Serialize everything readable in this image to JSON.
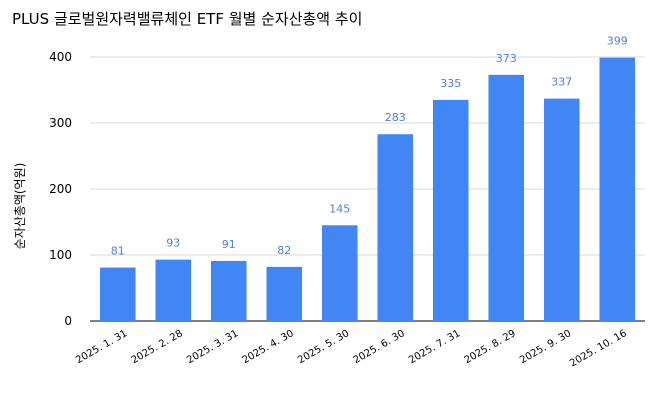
{
  "chart_data": {
    "type": "bar",
    "title": "PLUS 글로벌원자력밸류체인 ETF  월별 순자산총액 추이",
    "xlabel": "",
    "ylabel": "순자산총액(억원)",
    "categories": [
      "2025. 1. 31",
      "2025. 2. 28",
      "2025. 3. 31",
      "2025. 4. 30",
      "2025. 5. 30",
      "2025. 6. 30",
      "2025. 7. 31",
      "2025. 8. 29",
      "2025. 9. 30",
      "2025. 10. 16"
    ],
    "values": [
      81,
      93,
      91,
      82,
      145,
      283,
      335,
      373,
      337,
      399
    ],
    "data_labels": [
      "81",
      "93",
      "91",
      "82",
      "145",
      "283",
      "335",
      "373",
      "337",
      "399"
    ],
    "ylim": [
      0,
      400
    ],
    "yticks": [
      0,
      100,
      200,
      300,
      400
    ],
    "ytick_labels": [
      "0",
      "100",
      "200",
      "300",
      "400"
    ],
    "grid": true,
    "legend": "none",
    "colors": {
      "bar": "#4285f4",
      "data_label": "#4a7fd8",
      "grid": "#d9d9d9",
      "axis": "#333333"
    }
  }
}
